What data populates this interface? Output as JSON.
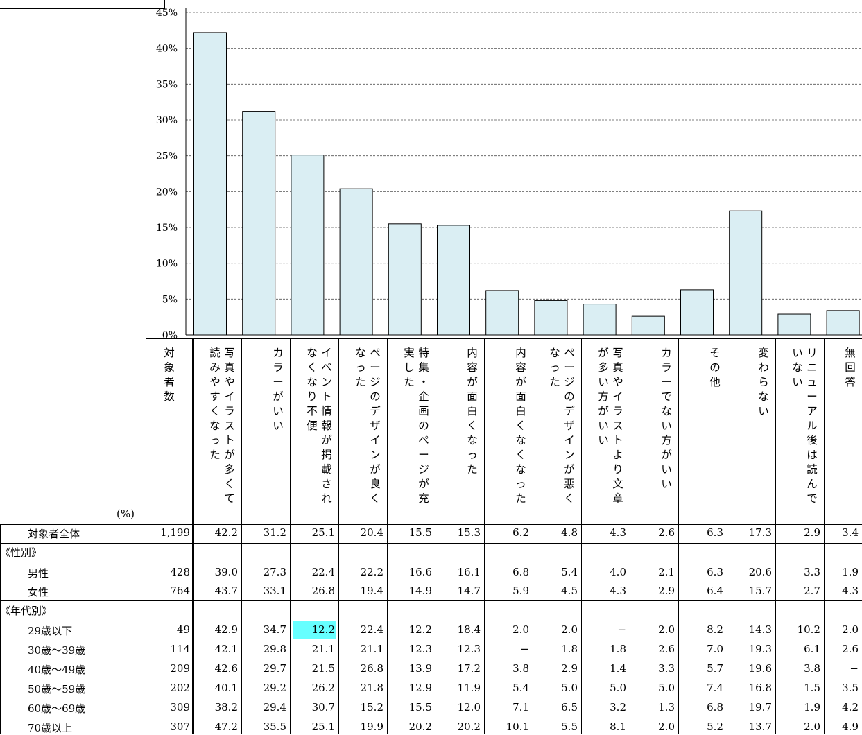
{
  "chart_data": {
    "type": "bar",
    "y_ticks": [
      "0%",
      "5%",
      "10%",
      "15%",
      "20%",
      "25%",
      "30%",
      "35%",
      "40%",
      "45%"
    ],
    "ylim": [
      0,
      45
    ],
    "grid": true,
    "categories": [
      "写真やイラストが多くて読みやすくなった",
      "カラーがいい",
      "イベント情報が掲載されなくなり不便",
      "ページのデザインが良くなった",
      "特集・企画のページが充実した",
      "内容が面白くなった",
      "内容が面白くなくなった",
      "ページのデザインが悪くなった",
      "写真やイラストより文章が多い方がいい",
      "カラーでない方がいい",
      "その他",
      "変わらない",
      "リニューアル後は読んでいない",
      "無回答"
    ],
    "values": [
      42.2,
      31.2,
      25.1,
      20.4,
      15.5,
      15.3,
      6.2,
      4.8,
      4.3,
      2.6,
      6.3,
      17.3,
      2.9,
      3.4
    ],
    "bar_color": "#daeef3",
    "highlight_color": "#66ffff"
  },
  "table": {
    "unit_label": "(%)",
    "count_header": "対象者数",
    "header_columns": [
      [
        "写真やイラストが多くて",
        "読みやすくなった"
      ],
      [
        "カラーがいい"
      ],
      [
        "イベント情報が掲載され",
        "なくなり不便"
      ],
      [
        "ページのデザインが良く",
        "なった"
      ],
      [
        "特集・企画のページが充",
        "実した"
      ],
      [
        "内容が面白くなった"
      ],
      [
        "内容が面白くなくなった"
      ],
      [
        "ページのデザインが悪く",
        "なった"
      ],
      [
        "写真やイラストより文章",
        "が多い方がいい"
      ],
      [
        "カラーでない方がいい"
      ],
      [
        "その他"
      ],
      [
        "変わらない"
      ],
      [
        "リニューアル後は読んで",
        "いない"
      ],
      [
        "無回答"
      ]
    ],
    "rows": [
      {
        "label": "対象者全体",
        "kind": "total",
        "n": "1,199",
        "values": [
          "42.2",
          "31.2",
          "25.1",
          "20.4",
          "15.5",
          "15.3",
          "6.2",
          "4.8",
          "4.3",
          "2.6",
          "6.3",
          "17.3",
          "2.9",
          "3.4"
        ]
      },
      {
        "label": "《性別》",
        "kind": "section"
      },
      {
        "label": "男性",
        "kind": "data",
        "n": "428",
        "values": [
          "39.0",
          "27.3",
          "22.4",
          "22.2",
          "16.6",
          "16.1",
          "6.8",
          "5.4",
          "4.0",
          "2.1",
          "6.3",
          "20.6",
          "3.3",
          "1.9"
        ]
      },
      {
        "label": "女性",
        "kind": "data",
        "n": "764",
        "values": [
          "43.7",
          "33.1",
          "26.8",
          "19.4",
          "14.9",
          "14.7",
          "5.9",
          "4.5",
          "4.3",
          "2.9",
          "6.4",
          "15.7",
          "2.7",
          "4.3"
        ]
      },
      {
        "label": "《年代別》",
        "kind": "section"
      },
      {
        "label": "29歳以下",
        "kind": "data",
        "n": "49",
        "highlight_col": 2,
        "values": [
          "42.9",
          "34.7",
          "12.2",
          "22.4",
          "12.2",
          "18.4",
          "2.0",
          "2.0",
          "−",
          "2.0",
          "8.2",
          "14.3",
          "10.2",
          "2.0"
        ]
      },
      {
        "label": "30歳～39歳",
        "kind": "data",
        "n": "114",
        "values": [
          "42.1",
          "29.8",
          "21.1",
          "21.1",
          "12.3",
          "12.3",
          "−",
          "1.8",
          "1.8",
          "2.6",
          "7.0",
          "19.3",
          "6.1",
          "2.6"
        ]
      },
      {
        "label": "40歳～49歳",
        "kind": "data",
        "n": "209",
        "values": [
          "42.6",
          "29.7",
          "21.5",
          "26.8",
          "13.9",
          "17.2",
          "3.8",
          "2.9",
          "1.4",
          "3.3",
          "5.7",
          "19.6",
          "3.8",
          "−"
        ]
      },
      {
        "label": "50歳～59歳",
        "kind": "data",
        "n": "202",
        "values": [
          "40.1",
          "29.2",
          "26.2",
          "21.8",
          "12.9",
          "11.9",
          "5.4",
          "5.0",
          "5.0",
          "5.0",
          "7.4",
          "16.8",
          "1.5",
          "3.5"
        ]
      },
      {
        "label": "60歳～69歳",
        "kind": "data",
        "n": "309",
        "values": [
          "38.2",
          "29.4",
          "30.7",
          "15.2",
          "15.5",
          "12.0",
          "7.1",
          "6.5",
          "3.2",
          "1.3",
          "6.8",
          "19.7",
          "1.9",
          "4.2"
        ]
      },
      {
        "label": "70歳以上",
        "kind": "data",
        "n": "307",
        "values": [
          "47.2",
          "35.5",
          "25.1",
          "19.9",
          "20.2",
          "20.2",
          "10.1",
          "5.5",
          "8.1",
          "2.0",
          "5.2",
          "13.7",
          "2.0",
          "4.9"
        ]
      }
    ]
  }
}
